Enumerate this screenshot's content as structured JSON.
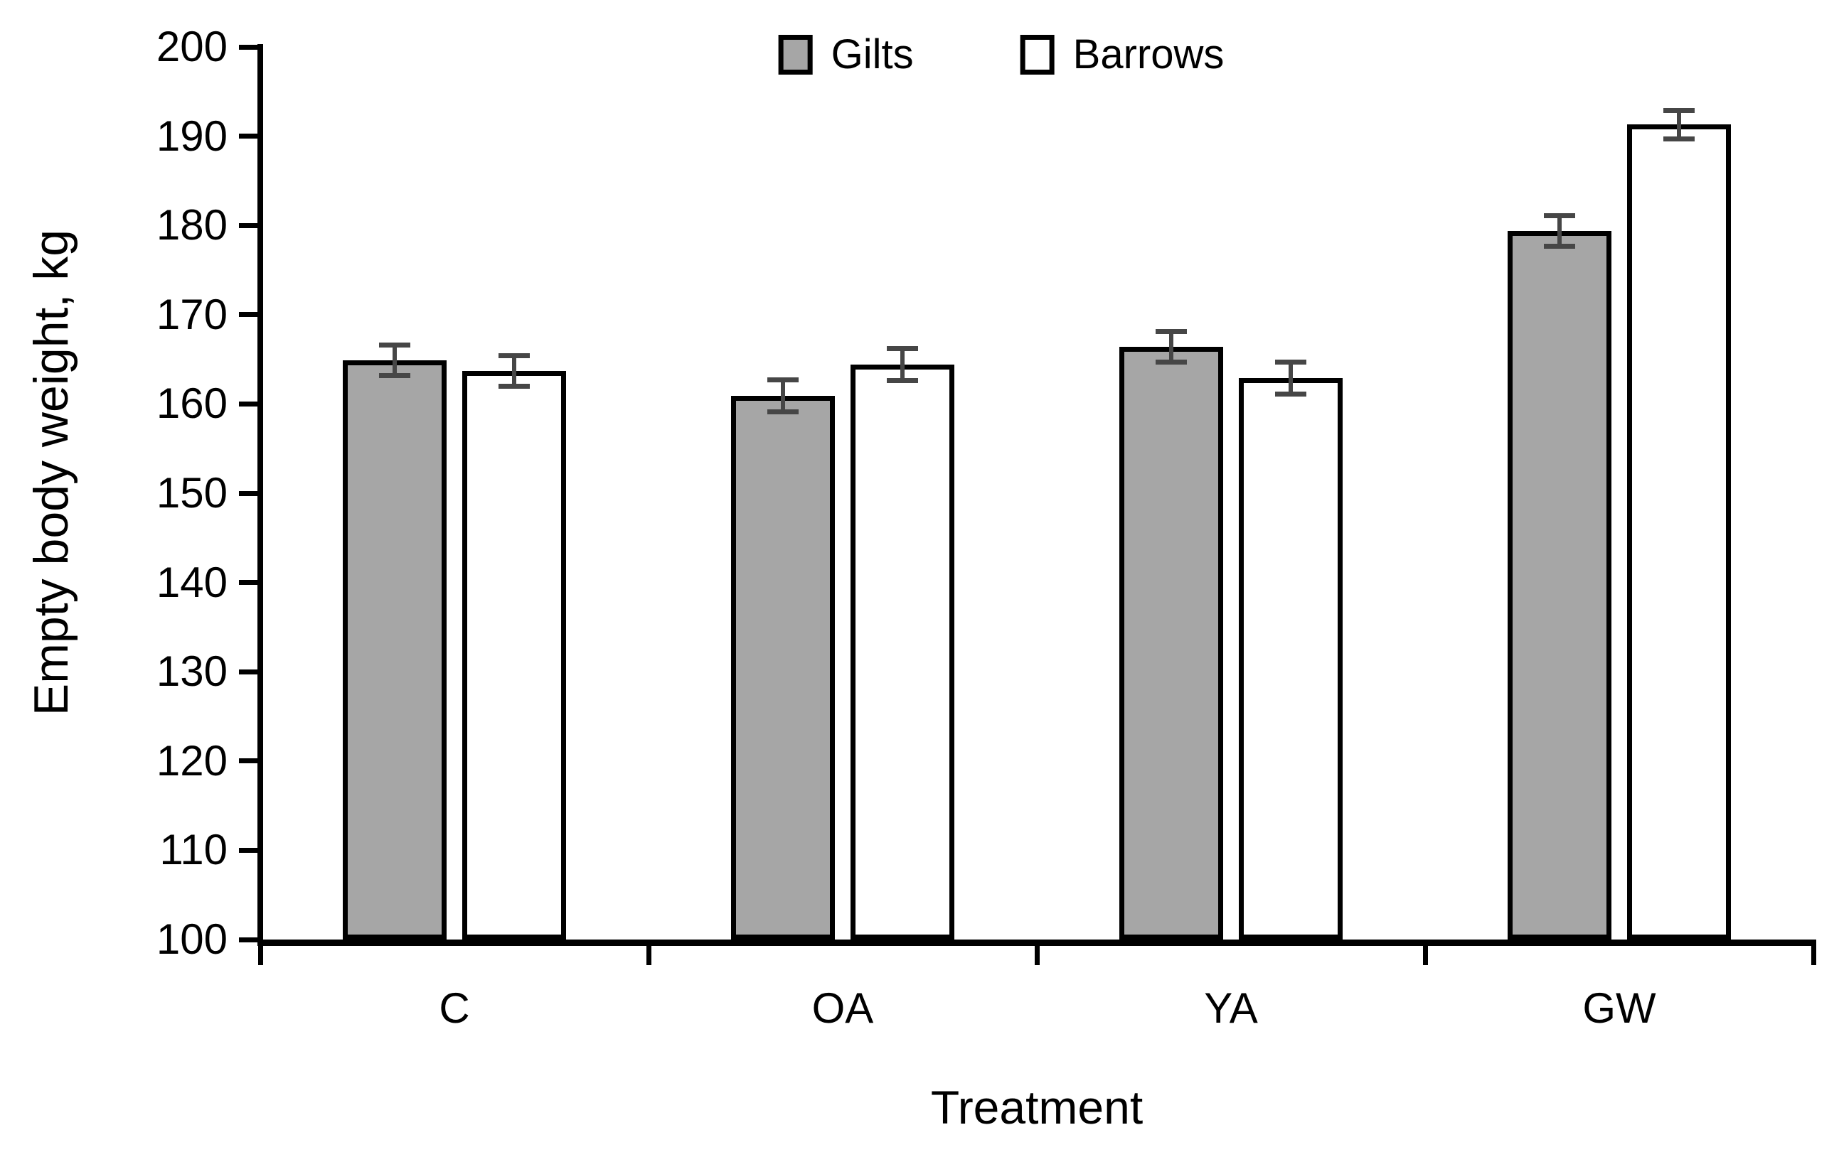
{
  "chart_data": {
    "type": "bar",
    "title": "",
    "xlabel": "Treatment",
    "ylabel": "Empty body weight, kg",
    "categories": [
      "C",
      "OA",
      "YA",
      "GW"
    ],
    "series": [
      {
        "name": "Gilts",
        "fill": "#a6a6a6",
        "values": [
          164.9,
          160.9,
          166.4,
          179.4
        ],
        "errors": [
          1.7,
          1.8,
          1.7,
          1.7
        ]
      },
      {
        "name": "Barrows",
        "fill": "#ffffff",
        "values": [
          163.7,
          164.4,
          162.9,
          191.3
        ],
        "errors": [
          1.7,
          1.8,
          1.8,
          1.6
        ]
      }
    ],
    "ylim": [
      100,
      200
    ],
    "ytick_step": 10,
    "ytick_labels": [
      "100",
      "110",
      "120",
      "130",
      "140",
      "150",
      "160",
      "170",
      "180",
      "190",
      "200"
    ],
    "legend_position": "top",
    "grid": false,
    "bar_border_color": "#000000",
    "error_bar_color": "#464646",
    "axis_color": "#000000",
    "background_color": "#ffffff"
  }
}
